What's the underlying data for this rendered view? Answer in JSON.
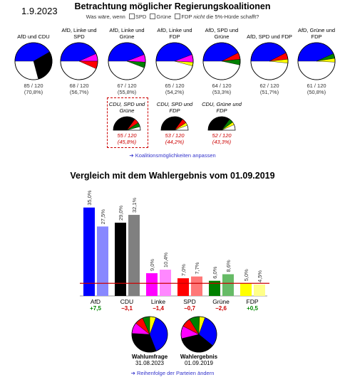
{
  "header": {
    "date": "1.9.2023",
    "title": "Betrachtung möglicher Regierungskoalitionen",
    "question_prefix": "Was wäre, wenn",
    "checkbox_spd": "SPD",
    "checkbox_gruene": "Grüne",
    "checkbox_fdp": "FDP",
    "question_nicht": "nicht",
    "question_suffix": "die 5%-Hürde schafft?"
  },
  "colors": {
    "afd": "#0000ff",
    "cdu": "#000000",
    "linke": "#ff00ff",
    "spd": "#ff0000",
    "gruene": "#008000",
    "fdp": "#ffff00",
    "afd_light": "#8888ff",
    "cdu_light": "#808080",
    "linke_light": "#ff88ff",
    "spd_light": "#ff7777",
    "gruene_light": "#66bb66",
    "fdp_light": "#ffff88",
    "link": "#3333cc"
  },
  "total_seats": 120,
  "coalitions": [
    {
      "name": "AfD und CDU",
      "seats": "85 / 120",
      "pct": "(70,8%)",
      "parties": [
        "afd",
        "cdu"
      ],
      "partyseats": [
        50,
        35
      ]
    },
    {
      "name": "AfD, Linke und SPD",
      "seats": "68 / 120",
      "pct": "(56,7%)",
      "parties": [
        "afd",
        "linke",
        "spd"
      ],
      "partyseats": [
        52,
        8,
        8
      ]
    },
    {
      "name": "AfD, Linke und Grüne",
      "seats": "67 / 120",
      "pct": "(55,8%)",
      "parties": [
        "afd",
        "linke",
        "gruene"
      ],
      "partyseats": [
        53,
        8,
        6
      ]
    },
    {
      "name": "AfD, Linke und FDP",
      "seats": "65 / 120",
      "pct": "(54,2%)",
      "parties": [
        "afd",
        "linke",
        "fdp"
      ],
      "partyseats": [
        53,
        8,
        4
      ]
    },
    {
      "name": "AfD, SPD und Grüne",
      "seats": "64 / 120",
      "pct": "(53,3%)",
      "parties": [
        "afd",
        "spd",
        "gruene"
      ],
      "partyseats": [
        51,
        7,
        6
      ]
    },
    {
      "name": "AfD, SPD und FDP",
      "seats": "62 / 120",
      "pct": "(51,7%)",
      "parties": [
        "afd",
        "spd",
        "fdp"
      ],
      "partyseats": [
        51,
        7,
        4
      ]
    },
    {
      "name": "AfD, Grüne und FDP",
      "seats": "61 / 120",
      "pct": "(50,8%)",
      "parties": [
        "afd",
        "gruene",
        "fdp"
      ],
      "partyseats": [
        52,
        5,
        4
      ]
    }
  ],
  "minority_coalitions": [
    {
      "name": "CDU, SPD und Grüne",
      "seats": "55 / 120",
      "pct": "(45,8%)",
      "parties": [
        "cdu",
        "spd",
        "gruene"
      ],
      "partyseats": [
        42,
        7,
        6
      ],
      "highlighted": true
    },
    {
      "name": "CDU, SPD und FDP",
      "seats": "53 / 120",
      "pct": "(44,2%)",
      "parties": [
        "cdu",
        "spd",
        "fdp"
      ],
      "partyseats": [
        42,
        7,
        4
      ],
      "highlighted": false
    },
    {
      "name": "CDU, Grüne und FDP",
      "seats": "52 / 120",
      "pct": "(43,3%)",
      "parties": [
        "cdu",
        "gruene",
        "fdp"
      ],
      "partyseats": [
        42,
        6,
        4
      ],
      "highlighted": false
    }
  ],
  "link_coalitions": "Koalitionsmöglichkeiten anpassen",
  "chart_title": "Vergleich mit dem Wahlergebnis vom 01.09.2019",
  "chart_data": {
    "type": "bar",
    "categories": [
      "AfD",
      "CDU",
      "Linke",
      "SPD",
      "Grüne",
      "FDP"
    ],
    "series": [
      {
        "values": [
          35.0,
          29.0,
          9.0,
          7.0,
          6.0,
          5.0
        ]
      },
      {
        "values": [
          27.5,
          32.1,
          10.4,
          7.7,
          8.6,
          4.5
        ]
      }
    ],
    "value_labels": [
      [
        "35,0%",
        "27,5%"
      ],
      [
        "29,0%",
        "32,1%"
      ],
      [
        "9,0%",
        "10,4%"
      ],
      [
        "7,0%",
        "7,7%"
      ],
      [
        "6,0%",
        "8,6%"
      ],
      [
        "5,0%",
        "4,5%"
      ]
    ],
    "diffs": [
      "+7,5",
      "−3,1",
      "−1,4",
      "−0,7",
      "−2,6",
      "+0,5"
    ],
    "threshold": 5,
    "ylim": [
      0,
      40
    ]
  },
  "seat_charts": [
    {
      "title": "Wahlumfrage",
      "date": "31.08.2023",
      "parties": [
        "afd",
        "cdu",
        "linke",
        "spd",
        "gruene",
        "fdp"
      ],
      "values": [
        35.0,
        29.0,
        9.0,
        7.0,
        6.0,
        5.0
      ]
    },
    {
      "title": "Wahlergebnis",
      "date": "01.09.2019",
      "parties": [
        "afd",
        "cdu",
        "linke",
        "spd",
        "gruene",
        "fdp"
      ],
      "values": [
        27.5,
        32.1,
        10.4,
        7.7,
        8.6,
        4.5
      ]
    }
  ],
  "link_order": "Reihenfolge der Parteien ändern"
}
